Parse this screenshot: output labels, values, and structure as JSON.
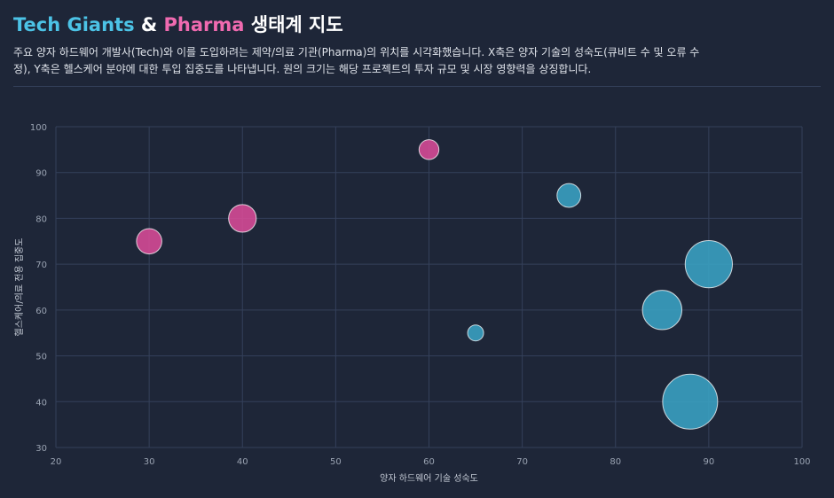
{
  "header": {
    "title_tech": "Tech Giants",
    "title_amp": " & ",
    "title_pharma": "Pharma",
    "title_rest": " 생태계 지도",
    "description": "주요 양자 하드웨어 개발사(Tech)와 이를 도입하려는 제약/의료 기관(Pharma)의 위치를 시각화했습니다. X축은 양자 기술의 성숙도(큐비트 수 및 오류 수정), Y축은 헬스케어 분야에 대한 투입 집중도를 나타냅니다. 원의 크기는 해당 프로젝트의 투자 규모 및 시장 영향력을 상징합니다."
  },
  "colors": {
    "tech": "#3aa3c4",
    "pharma": "#d94b97",
    "grid": "#34405a",
    "background": "#1e2638"
  },
  "chart_data": {
    "type": "scatter",
    "xlabel": "양자 하드웨어 기술 성숙도",
    "ylabel": "헬스케어/의료 전용 집중도",
    "xlim": [
      20,
      100
    ],
    "ylim": [
      30,
      100
    ],
    "xticks": [
      20,
      30,
      40,
      50,
      60,
      70,
      80,
      90,
      100
    ],
    "yticks": [
      30,
      40,
      50,
      60,
      70,
      80,
      90,
      100
    ],
    "grid": true,
    "series": [
      {
        "group": "tech",
        "points": [
          {
            "x": 75,
            "y": 85,
            "size": 2
          },
          {
            "x": 90,
            "y": 70,
            "size": 5
          },
          {
            "x": 85,
            "y": 60,
            "size": 4
          },
          {
            "x": 65,
            "y": 55,
            "size": 1
          },
          {
            "x": 88,
            "y": 40,
            "size": 6
          }
        ]
      },
      {
        "group": "pharma",
        "points": [
          {
            "x": 60,
            "y": 95,
            "size": 1.5
          },
          {
            "x": 40,
            "y": 80,
            "size": 2.5
          },
          {
            "x": 30,
            "y": 75,
            "size": 2.2
          }
        ]
      }
    ]
  }
}
